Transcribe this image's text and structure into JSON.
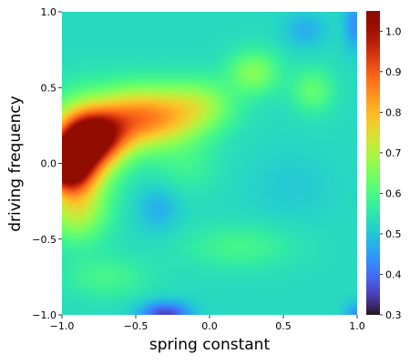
{
  "chart_data": {
    "type": "heatmap",
    "title": "",
    "xlabel": "spring constant",
    "ylabel": "driving frequency",
    "xlim": [
      -1.0,
      1.0
    ],
    "ylim": [
      -1.0,
      1.0
    ],
    "xticks": [
      -1.0,
      -0.5,
      0.0,
      0.5,
      1.0
    ],
    "xtick_labels": [
      "−1.0",
      "−0.5",
      "0.0",
      "0.5",
      "1.0"
    ],
    "yticks": [
      -1.0,
      -0.5,
      0.0,
      0.5,
      1.0
    ],
    "ytick_labels": [
      "−1.0",
      "−0.5",
      "0.0",
      "0.5",
      "1.0"
    ],
    "colormap": "turbo",
    "colorbar": {
      "range": [
        0.3,
        1.05
      ],
      "ticks": [
        0.3,
        0.4,
        0.5,
        0.6,
        0.7,
        0.8,
        0.9,
        1.0
      ],
      "tick_labels": [
        "0.3",
        "0.4",
        "0.5",
        "0.6",
        "0.7",
        "0.8",
        "0.9",
        "1.0"
      ]
    },
    "grid": false,
    "baseline_value": 0.53,
    "features": [
      {
        "x": -0.97,
        "y": -0.02,
        "value": 1.03,
        "sx": 0.12,
        "sy": 0.12
      },
      {
        "x": -0.78,
        "y": 0.17,
        "value": 0.93,
        "sx": 0.15,
        "sy": 0.12
      },
      {
        "x": -0.88,
        "y": 0.1,
        "value": 0.9,
        "sx": 0.16,
        "sy": 0.2
      },
      {
        "x": -0.55,
        "y": 0.3,
        "value": 0.8,
        "sx": 0.18,
        "sy": 0.14
      },
      {
        "x": -0.3,
        "y": 0.3,
        "value": 0.75,
        "sx": 0.18,
        "sy": 0.14
      },
      {
        "x": -0.05,
        "y": 0.38,
        "value": 0.68,
        "sx": 0.16,
        "sy": 0.12
      },
      {
        "x": 0.3,
        "y": 0.6,
        "value": 0.68,
        "sx": 0.12,
        "sy": 0.1
      },
      {
        "x": 0.7,
        "y": 0.48,
        "value": 0.64,
        "sx": 0.1,
        "sy": 0.1
      },
      {
        "x": -0.9,
        "y": -0.32,
        "value": 0.72,
        "sx": 0.14,
        "sy": 0.14
      },
      {
        "x": -0.35,
        "y": -0.3,
        "value": 0.46,
        "sx": 0.1,
        "sy": 0.1
      },
      {
        "x": -0.15,
        "y": -0.02,
        "value": 0.58,
        "sx": 0.15,
        "sy": 0.12
      },
      {
        "x": -0.3,
        "y": -1.0,
        "value": 0.32,
        "sx": 0.12,
        "sy": 0.06
      },
      {
        "x": 1.0,
        "y": -1.0,
        "value": 0.42,
        "sx": 0.06,
        "sy": 0.06
      },
      {
        "x": 0.98,
        "y": 0.92,
        "value": 0.42,
        "sx": 0.05,
        "sy": 0.12
      },
      {
        "x": 0.65,
        "y": 0.88,
        "value": 0.46,
        "sx": 0.1,
        "sy": 0.08
      },
      {
        "x": 0.2,
        "y": -0.55,
        "value": 0.6,
        "sx": 0.25,
        "sy": 0.1
      },
      {
        "x": 0.55,
        "y": -0.15,
        "value": 0.5,
        "sx": 0.2,
        "sy": 0.15
      },
      {
        "x": -0.7,
        "y": -0.75,
        "value": 0.6,
        "sx": 0.2,
        "sy": 0.1
      }
    ]
  }
}
